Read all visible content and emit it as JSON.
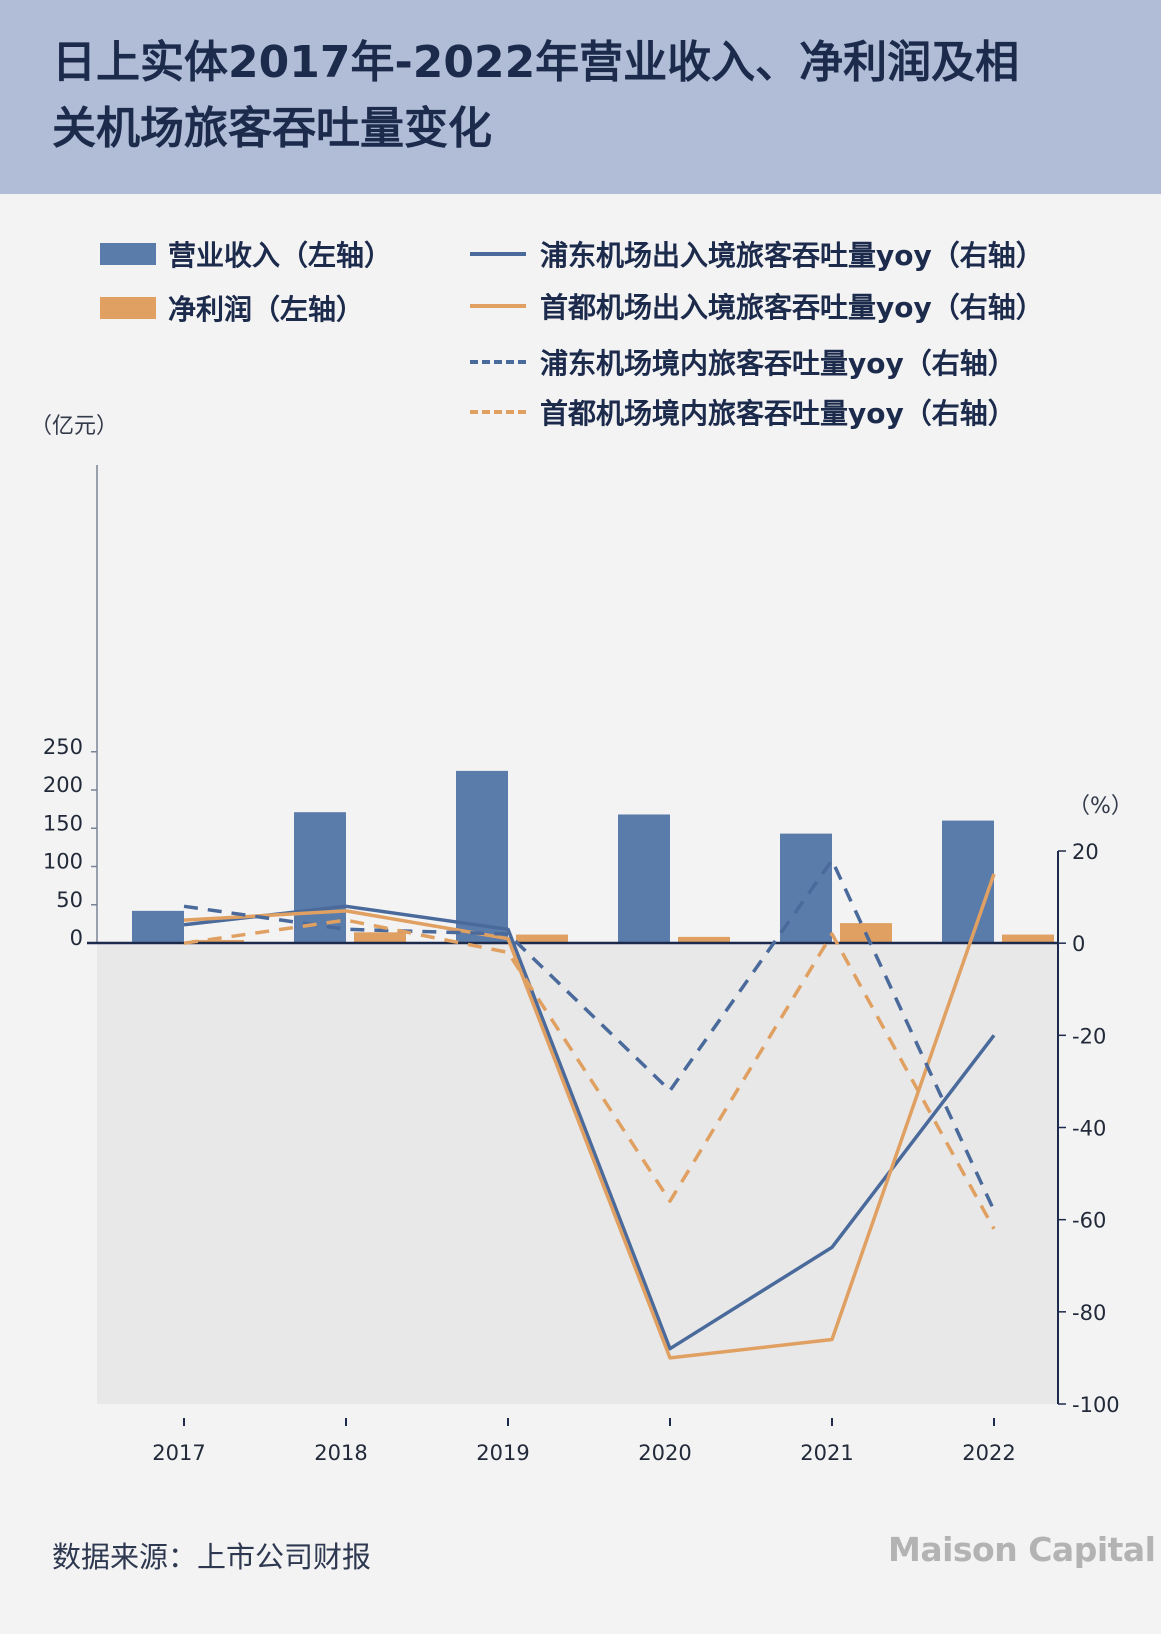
{
  "header": {
    "title": "日上实体2017年-2022年营业收入、净利润及相关机场旅客吞吐量变化"
  },
  "legend": {
    "revenue": "营业收入（左轴）",
    "profit": "净利润（左轴）",
    "pd_intl": "浦东机场出入境旅客吞吐量yoy（右轴）",
    "cap_intl": "首都机场出入境旅客吞吐量yoy（右轴）",
    "pd_dom": "浦东机场境内旅客吞吐量yoy（右轴）",
    "cap_dom": "首都机场境内旅客吞吐量yoy（右轴）"
  },
  "units": {
    "left": "（亿元）",
    "right": "（%）"
  },
  "footer": {
    "source": "数据来源：上市公司财报",
    "logo": "Maison Capital"
  },
  "colors": {
    "blue": "#5a7cab",
    "orange": "#e0a062",
    "axis": "#1c2a4c",
    "negative_bg": "#e8e8e8"
  },
  "chart_data": {
    "type": "bar+line",
    "categories": [
      "2017",
      "2018",
      "2019",
      "2020",
      "2021",
      "2022"
    ],
    "left_axis": {
      "ylim": [
        0,
        250
      ],
      "ticks": [
        0,
        50,
        100,
        150,
        200,
        250
      ],
      "tick_labels": [
        "0",
        "50",
        "100",
        "150",
        "200",
        "250"
      ]
    },
    "right_axis": {
      "ylim": [
        -100,
        20
      ],
      "ticks": [
        20,
        0,
        -20,
        -40,
        -60,
        -80,
        -100
      ],
      "tick_labels": [
        "20",
        "0",
        "-20",
        "-40",
        "-60",
        "-80",
        "-100"
      ]
    },
    "bars": [
      {
        "name": "营业收入（左轴）",
        "color": "#5a7cab",
        "values": [
          42,
          171,
          225,
          168,
          143,
          160
        ]
      },
      {
        "name": "净利润（左轴）",
        "color": "#e0a062",
        "values": [
          4,
          14,
          11,
          8,
          26,
          11
        ]
      }
    ],
    "lines": [
      {
        "name": "浦东机场出入境旅客吞吐量yoy（右轴）",
        "color": "#4a6a9c",
        "dash": false,
        "values": [
          4,
          8,
          3,
          -88,
          -66,
          -20
        ]
      },
      {
        "name": "首都机场出入境旅客吞吐量yoy（右轴）",
        "color": "#e0a062",
        "dash": false,
        "values": [
          5,
          7,
          1,
          -90,
          -86,
          15
        ]
      },
      {
        "name": "浦东机场境内旅客吞吐量yoy（右轴）",
        "color": "#4a6a9c",
        "dash": true,
        "values": [
          8,
          3,
          2,
          -32,
          18,
          -58
        ]
      },
      {
        "name": "首都机场境内旅客吞吐量yoy（右轴）",
        "color": "#e0a062",
        "dash": true,
        "values": [
          0,
          5,
          -2,
          -56,
          2,
          -62
        ]
      }
    ]
  }
}
